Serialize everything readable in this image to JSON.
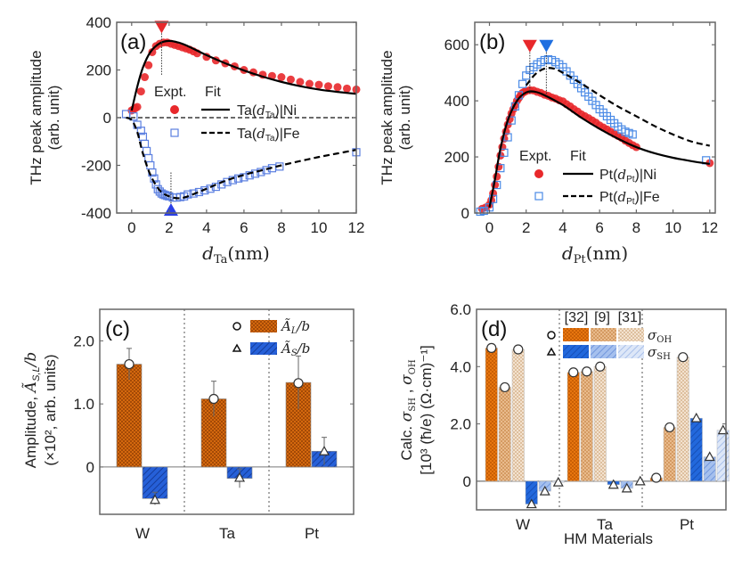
{
  "chart_data": [
    {
      "panel": "(a)",
      "type": "scatter",
      "xlabel": "d_Ta(nm)",
      "xlabel_main": "d",
      "xlabel_sub": "Ta",
      "xlabel_unit": "(nm)",
      "ylabel": [
        "THz peak amplitude",
        "(arb. unit)"
      ],
      "xlim": [
        -0.8,
        12
      ],
      "ylim": [
        -400,
        400
      ],
      "xticks": [
        0,
        2,
        4,
        6,
        8,
        10,
        12
      ],
      "yticks": [
        -400,
        -200,
        0,
        200,
        400
      ],
      "legend_header": [
        "Expt.",
        "Fit"
      ],
      "legend": [
        {
          "label": "Ta(d_Ta)|Ni",
          "prefix": "Ta(",
          "sub": "Ta",
          "suffix": ")|Ni",
          "marker": "filled-circle",
          "line": "solid",
          "color": "#e8282b"
        },
        {
          "label": "Ta(d_Ta)|Fe",
          "prefix": "Ta(",
          "sub": "Ta",
          "suffix": ")|Fe",
          "marker": "open-square",
          "line": "dashed",
          "color": "#5b7fe0"
        }
      ],
      "markers": [
        {
          "x": 1.6,
          "y": 380,
          "dir": "down",
          "color": "#e8282b"
        },
        {
          "x": 2.1,
          "y": -385,
          "dir": "up",
          "color": "#2a3fe6"
        }
      ],
      "series": [
        {
          "name": "Ta|Ni Expt.",
          "color": "#e8282b",
          "x": [
            0,
            0.1,
            0.2,
            0.3,
            0.5,
            0.7,
            0.9,
            1.1,
            1.3,
            1.5,
            1.7,
            1.9,
            2.1,
            2.3,
            2.5,
            2.7,
            2.9,
            3.1,
            3.3,
            3.5,
            4.0,
            4.5,
            5.0,
            5.5,
            6.0,
            6.5,
            7.0,
            7.5,
            8.0,
            8.5,
            9.0,
            9.5,
            10.0,
            10.5,
            11.0,
            11.5,
            12.0
          ],
          "y": [
            30,
            35,
            40,
            45,
            110,
            170,
            220,
            275,
            300,
            310,
            315,
            315,
            310,
            305,
            300,
            295,
            290,
            285,
            278,
            270,
            255,
            240,
            228,
            215,
            200,
            190,
            180,
            175,
            170,
            160,
            150,
            142,
            138,
            132,
            128,
            122,
            118
          ]
        },
        {
          "name": "Ta|Ni Fit",
          "color": "#000000",
          "style": "solid",
          "x": [
            0,
            0.3,
            0.6,
            1.0,
            1.5,
            2.0,
            2.5,
            3.0,
            4.0,
            5.0,
            6.0,
            7.0,
            8.0,
            9.0,
            10.0,
            11.0,
            12.0
          ],
          "y": [
            30,
            130,
            210,
            275,
            312,
            322,
            315,
            300,
            262,
            228,
            198,
            172,
            150,
            132,
            118,
            108,
            100
          ]
        },
        {
          "name": "Ta|Fe Expt.",
          "color": "#5b7fe0",
          "x": [
            -0.3,
            0.1,
            0.3,
            0.5,
            0.6,
            0.7,
            0.8,
            0.9,
            1.0,
            1.1,
            1.2,
            1.3,
            1.4,
            1.5,
            1.6,
            1.7,
            1.8,
            1.9,
            2.0,
            2.2,
            2.4,
            2.6,
            2.8,
            3.0,
            3.3,
            3.6,
            3.9,
            4.2,
            4.5,
            4.8,
            5.1,
            5.4,
            5.7,
            6.0,
            6.3,
            6.6,
            6.9,
            7.2,
            7.5,
            7.9,
            12.0
          ],
          "y": [
            15,
            5,
            -30,
            -55,
            -80,
            -110,
            -140,
            -170,
            -200,
            -230,
            -255,
            -280,
            -300,
            -310,
            -318,
            -322,
            -325,
            -328,
            -330,
            -335,
            -335,
            -333,
            -330,
            -322,
            -318,
            -312,
            -305,
            -298,
            -290,
            -280,
            -270,
            -262,
            -255,
            -250,
            -242,
            -235,
            -228,
            -220,
            -212,
            -205,
            -145
          ]
        },
        {
          "name": "Ta|Fe Fit",
          "color": "#000000",
          "style": "dashed",
          "x": [
            -0.3,
            0,
            0.3,
            0.6,
            1.0,
            1.5,
            2.0,
            2.5,
            3.0,
            4.0,
            5.0,
            6.0,
            7.0,
            8.0,
            9.0,
            10.0,
            11.0,
            12.0
          ],
          "y": [
            0,
            -10,
            -60,
            -150,
            -240,
            -305,
            -330,
            -338,
            -330,
            -298,
            -265,
            -240,
            -220,
            -200,
            -182,
            -165,
            -150,
            -135
          ]
        }
      ]
    },
    {
      "panel": "(b)",
      "type": "scatter",
      "xlabel": "d_Pt(nm)",
      "xlabel_main": "d",
      "xlabel_sub": "Pt",
      "xlabel_unit": "(nm)",
      "ylabel": [
        "THz peak amplitude",
        "(arb. unit)"
      ],
      "xlim": [
        -0.8,
        12.3
      ],
      "ylim": [
        0,
        680
      ],
      "xticks": [
        0,
        2,
        4,
        6,
        8,
        10,
        12
      ],
      "yticks": [
        0,
        200,
        400,
        600
      ],
      "legend_header": [
        "Expt.",
        "Fit"
      ],
      "legend": [
        {
          "label": "Pt(d_Pt)|Ni",
          "prefix": "Pt(",
          "sub": "Pt",
          "suffix": ")|Ni",
          "marker": "filled-circle",
          "line": "solid",
          "color": "#e8282b"
        },
        {
          "label": "Pt(d_Pt)|Fe",
          "prefix": "Pt(",
          "sub": "Pt",
          "suffix": ")|Fe",
          "marker": "open-square",
          "line": "dashed",
          "color": "#4a8ae6"
        }
      ],
      "markers": [
        {
          "x": 2.2,
          "y": 595,
          "dir": "down",
          "color": "#e8282b"
        },
        {
          "x": 3.1,
          "y": 595,
          "dir": "down",
          "color": "#1f6fe0"
        }
      ],
      "series": [
        {
          "name": "Pt|Ni Expt.",
          "color": "#e8282b",
          "x": [
            -0.4,
            -0.2,
            0,
            0.1,
            0.2,
            0.3,
            0.4,
            0.5,
            0.6,
            0.7,
            0.8,
            0.9,
            1.0,
            1.1,
            1.2,
            1.3,
            1.4,
            1.5,
            1.6,
            1.7,
            1.8,
            1.9,
            2.0,
            2.2,
            2.4,
            2.6,
            2.8,
            3.0,
            3.2,
            3.4,
            3.6,
            3.8,
            4.0,
            4.2,
            4.4,
            4.6,
            4.8,
            5.0,
            5.2,
            5.4,
            5.6,
            5.8,
            6.0,
            6.2,
            6.4,
            6.6,
            6.8,
            7.0,
            7.2,
            7.4,
            7.6,
            7.8,
            8.0,
            12.0
          ],
          "y": [
            15,
            20,
            30,
            45,
            70,
            100,
            130,
            165,
            205,
            235,
            265,
            290,
            315,
            335,
            355,
            370,
            385,
            400,
            410,
            420,
            428,
            432,
            435,
            438,
            437,
            432,
            428,
            422,
            418,
            412,
            408,
            402,
            398,
            388,
            380,
            370,
            362,
            352,
            345,
            338,
            330,
            322,
            312,
            305,
            298,
            290,
            282,
            275,
            268,
            258,
            250,
            242,
            235,
            178
          ]
        },
        {
          "name": "Pt|Ni Fit",
          "color": "#000000",
          "style": "solid",
          "x": [
            0,
            0.3,
            0.6,
            1.0,
            1.5,
            2.0,
            2.5,
            3.0,
            4.0,
            5.0,
            6.0,
            7.0,
            8.0,
            9.0,
            10.0,
            11.0,
            12.0
          ],
          "y": [
            20,
            120,
            230,
            330,
            400,
            430,
            432,
            420,
            385,
            340,
            300,
            265,
            235,
            213,
            197,
            185,
            175
          ]
        },
        {
          "name": "Pt|Fe Expt.",
          "color": "#4a8ae6",
          "x": [
            -0.5,
            -0.3,
            0,
            0.2,
            0.4,
            0.6,
            0.8,
            1.0,
            1.2,
            1.4,
            1.6,
            1.8,
            2.0,
            2.2,
            2.4,
            2.6,
            2.8,
            3.0,
            3.2,
            3.4,
            3.6,
            3.8,
            4.0,
            4.2,
            4.4,
            4.6,
            4.8,
            5.0,
            5.2,
            5.4,
            5.6,
            5.8,
            6.0,
            6.2,
            6.4,
            6.6,
            6.8,
            7.0,
            7.2,
            7.4,
            7.6,
            7.8,
            11.8
          ],
          "y": [
            5,
            8,
            20,
            50,
            100,
            160,
            215,
            270,
            330,
            380,
            420,
            460,
            490,
            510,
            520,
            530,
            538,
            545,
            548,
            545,
            538,
            530,
            520,
            505,
            490,
            475,
            460,
            445,
            430,
            415,
            400,
            385,
            370,
            358,
            345,
            332,
            320,
            308,
            298,
            290,
            285,
            280,
            188
          ]
        },
        {
          "name": "Pt|Fe Fit",
          "color": "#000000",
          "style": "dashed",
          "x": [
            2.0,
            2.5,
            3.0,
            3.5,
            4.0,
            5.0,
            6.0,
            7.0,
            8.0,
            9.0,
            10.0,
            11.0,
            12.0
          ],
          "y": [
            455,
            495,
            515,
            515,
            500,
            462,
            420,
            380,
            345,
            310,
            280,
            255,
            240
          ]
        }
      ]
    },
    {
      "panel": "(c)",
      "type": "bar",
      "categories": [
        "W",
        "Ta",
        "Pt"
      ],
      "ylabel": [
        "Amplitude, Ã_S,L / b",
        "(×10², arb. units)"
      ],
      "ylim": [
        -0.75,
        2.5
      ],
      "yticks": [
        0,
        1.0,
        2.0
      ],
      "ytick_labels": [
        "0",
        "1.0",
        "2.0"
      ],
      "legend": [
        {
          "label": "Ã_L/b",
          "main": "Ã",
          "sub": "L",
          "tail": "/b",
          "marker": "circle",
          "color": "#d4680e"
        },
        {
          "label": "Ã_S/b",
          "main": "Ã",
          "sub": "S",
          "tail": "/b",
          "marker": "triangle",
          "color": "#2660d8"
        }
      ],
      "series": [
        {
          "name": "Ã_L/b",
          "color": "#d4680e",
          "values": [
            1.63,
            1.08,
            1.34
          ],
          "errors": [
            0.25,
            0.28,
            0.42
          ],
          "marker_values": [
            1.63,
            1.08,
            1.33
          ]
        },
        {
          "name": "Ã_S/b",
          "color": "#2660d8",
          "values": [
            -0.5,
            -0.18,
            0.25
          ],
          "errors": [
            0.1,
            0.15,
            0.22
          ],
          "marker_values": [
            -0.52,
            -0.17,
            0.25
          ]
        }
      ]
    },
    {
      "panel": "(d)",
      "type": "bar",
      "categories": [
        "W",
        "Ta",
        "Pt"
      ],
      "xlabel": "HM Materials",
      "ylabel": [
        "Calc. σ_SH , σ_OH",
        "[10³ (ħ/e) (Ω·cm)⁻¹]"
      ],
      "ylim": [
        -1.0,
        6.0
      ],
      "yticks": [
        0,
        2.0,
        4.0,
        6.0
      ],
      "ytick_labels": [
        "0",
        "2.0",
        "4.0",
        "6.0"
      ],
      "legend_refs": [
        "[32]",
        "[9]",
        "[31]"
      ],
      "legend_rows": [
        {
          "label": "σ_OH",
          "main": "σ",
          "sub": "OH",
          "marker": "circle"
        },
        {
          "label": "σ_SH",
          "main": "σ",
          "sub": "SH",
          "marker": "triangle"
        }
      ],
      "series": [
        {
          "name": "σ_OH [32]",
          "color": "#e8760f",
          "values": [
            4.65,
            3.8,
            0.12
          ]
        },
        {
          "name": "σ_OH [9]",
          "color": "#e6b480",
          "values": [
            3.28,
            3.83,
            1.88
          ]
        },
        {
          "name": "σ_OH [31]",
          "color": "#efd6bd",
          "values": [
            4.6,
            4.0,
            4.33
          ]
        },
        {
          "name": "σ_SH [32]",
          "color": "#1f5fd8",
          "values": [
            -0.8,
            -0.12,
            2.2
          ]
        },
        {
          "name": "σ_SH [9]",
          "color": "#8fb0ea",
          "values": [
            -0.35,
            -0.25,
            0.85
          ]
        },
        {
          "name": "σ_SH [31]",
          "color": "#c9d9f4",
          "values": [
            -0.04,
            0.0,
            1.78
          ]
        }
      ]
    }
  ]
}
